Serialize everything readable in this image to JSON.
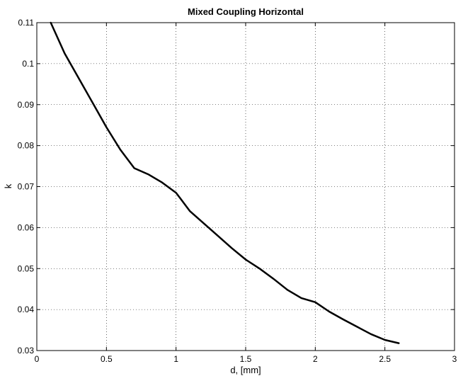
{
  "chart_data": {
    "type": "line",
    "title": "Mixed Coupling Horizontal",
    "xlabel": "d, [mm]",
    "ylabel": "k",
    "xlim": [
      0,
      3
    ],
    "ylim": [
      0.03,
      0.11
    ],
    "xticks": [
      0,
      0.5,
      1,
      1.5,
      2,
      2.5,
      3
    ],
    "xtick_labels": [
      "0",
      "0.5",
      "1",
      "1.5",
      "2",
      "2.5",
      "3"
    ],
    "yticks": [
      0.03,
      0.04,
      0.05,
      0.06,
      0.07,
      0.08,
      0.09,
      0.1,
      0.11
    ],
    "ytick_labels": [
      "0.03",
      "0.04",
      "0.05",
      "0.06",
      "0.07",
      "0.08",
      "0.09",
      "0.1",
      "0.11"
    ],
    "grid": true,
    "series": [
      {
        "color": "#000000",
        "x": [
          0.1,
          0.2,
          0.3,
          0.4,
          0.5,
          0.6,
          0.7,
          0.8,
          0.9,
          1.0,
          1.1,
          1.2,
          1.3,
          1.4,
          1.5,
          1.6,
          1.7,
          1.8,
          1.9,
          2.0,
          2.1,
          2.2,
          2.3,
          2.4,
          2.5,
          2.6
        ],
        "y": [
          0.11,
          0.1025,
          0.0965,
          0.0905,
          0.0845,
          0.079,
          0.0745,
          0.073,
          0.071,
          0.0685,
          0.064,
          0.061,
          0.058,
          0.055,
          0.0522,
          0.05,
          0.0475,
          0.0448,
          0.0428,
          0.0418,
          0.0395,
          0.0376,
          0.0358,
          0.034,
          0.0326,
          0.0318
        ]
      }
    ]
  }
}
